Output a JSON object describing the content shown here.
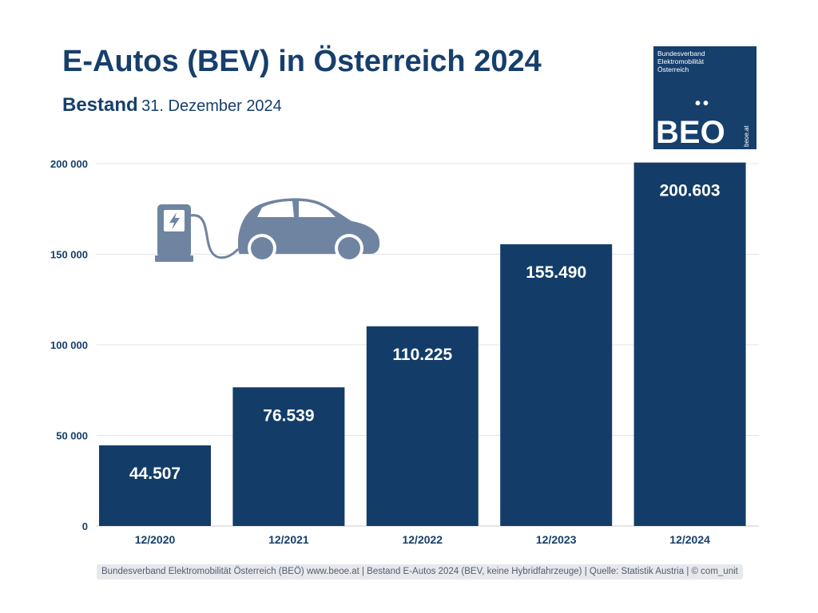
{
  "header": {
    "title": "E-Autos (BEV) in Österreich 2024",
    "subtitle_strong": "Bestand",
    "subtitle_light": "31. Dezember 2024"
  },
  "logo": {
    "org_lines": [
      "Bundesverband",
      "Elektromobilität",
      "Österreich"
    ],
    "dots": "••",
    "mark": "BEO",
    "site": "beoe.at"
  },
  "colors": {
    "bar": "#133d68",
    "text": "#163f6c",
    "grid": "#e1e4e8",
    "icon": "#6f84a1"
  },
  "icons": {
    "charger": "charging-station-icon",
    "car": "electric-car-icon"
  },
  "chart_data": {
    "type": "bar",
    "title": "E-Autos (BEV) in Österreich 2024",
    "subtitle": "Bestand 31. Dezember 2024",
    "categories": [
      "12/2020",
      "12/2021",
      "12/2022",
      "12/2023",
      "12/2024"
    ],
    "values": [
      44507,
      76539,
      110225,
      155490,
      200603
    ],
    "data_labels": [
      "44.507",
      "76.539",
      "110.225",
      "155.490",
      "200.603"
    ],
    "ylim": [
      0,
      200000
    ],
    "yticks": [
      0,
      50000,
      100000,
      150000,
      200000
    ],
    "ytick_labels": [
      "0",
      "50 000",
      "100 000",
      "150 000",
      "200 000"
    ],
    "xlabel": "",
    "ylabel": "",
    "grid": true,
    "legend": "none"
  },
  "footer": {
    "text": "Bundesverband Elektromobilität Österreich (BEÖ) www.beoe.at | Bestand E-Autos 2024 (BEV, keine Hybridfahrzeuge) | Quelle: Statistik Austria | © com_unit"
  }
}
